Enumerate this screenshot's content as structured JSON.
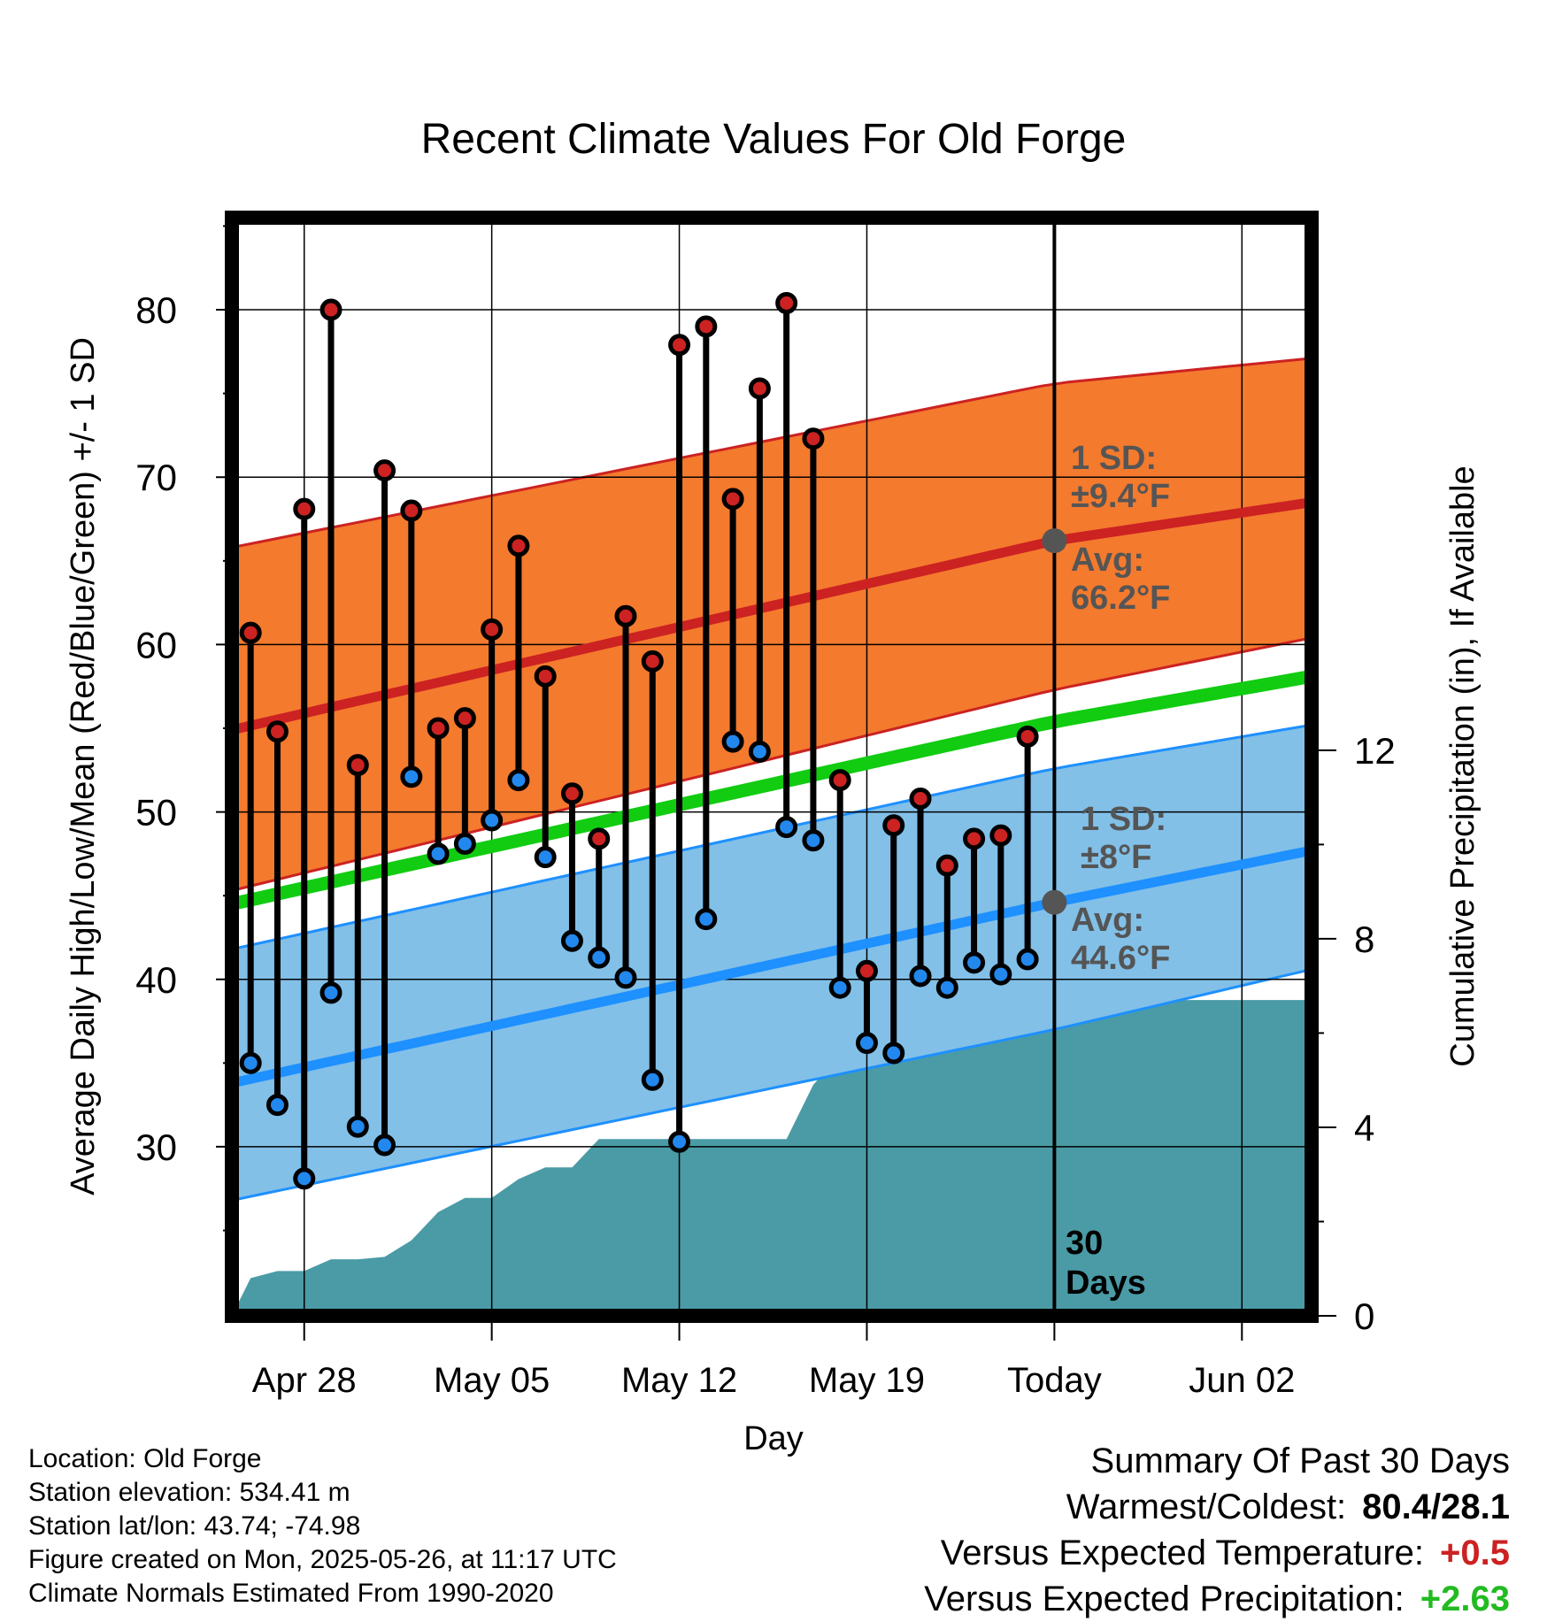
{
  "title": "Recent Climate Values For Old Forge",
  "y_left_label": "Average Daily High/Low/Mean (Red/Blue/Green) +/- 1 SD",
  "y_right_label": "Cumulative Precipitation (in), If Available",
  "x_label": "Day",
  "annotations": {
    "high_sd_line1": "1 SD:",
    "high_sd_line2": "±9.4°F",
    "high_avg_line1": "Avg:",
    "high_avg_line2": "66.2°F",
    "low_sd_line1": "1 SD:",
    "low_sd_line2": "±8°F",
    "low_avg_line1": "Avg:",
    "low_avg_line2": "44.6°F",
    "days_line1": "30",
    "days_line2": "Days"
  },
  "station": {
    "location": "Location: Old Forge",
    "elevation": "Station elevation: 534.41 m",
    "latlon": "Station lat/lon: 43.74; -74.98",
    "created": "Figure created on Mon, 2025-05-26, at 11:17 UTC",
    "normals": "Climate Normals Estimated From 1990-2020"
  },
  "summary": {
    "heading": "Summary Of Past 30 Days",
    "warm_cold_label": "Warmest/Coldest:",
    "warm_cold_value": "80.4/28.1",
    "temp_label": "Versus Expected Temperature:",
    "temp_value": "+0.5",
    "precip_label": "Versus Expected Precipitation:",
    "precip_value": "+2.63"
  },
  "colors": {
    "high_marker": "#cc2222",
    "low_marker": "#2288ee",
    "high_band": "#f47a2e",
    "high_avg_line": "#cc2222",
    "low_band": "#82c0e8",
    "low_avg_line": "#1e90ff",
    "mean_line": "#11cc11",
    "precip_fill": "#4a9ba6",
    "temp_value": "#cc2222",
    "precip_value": "#22bb22"
  },
  "chart_data": {
    "type": "line",
    "x_ticks": [
      {
        "day": 2,
        "label": "Apr 28"
      },
      {
        "day": 9,
        "label": "May 05"
      },
      {
        "day": 16,
        "label": "May 12"
      },
      {
        "day": 23,
        "label": "May 19"
      },
      {
        "day": 30,
        "label": "Today"
      },
      {
        "day": 37,
        "label": "Jun 02"
      }
    ],
    "xlim": [
      -0.7,
      39.6
    ],
    "ylim_temp": [
      19.9,
      85.5
    ],
    "ylim_precip": [
      0,
      23.3
    ],
    "y_ticks_temp": [
      30,
      40,
      50,
      60,
      70,
      80
    ],
    "y_ticks_precip": [
      0,
      4,
      8,
      12
    ],
    "grid": true,
    "today_day": 30,
    "daily": [
      {
        "day": 0,
        "high": 60.7,
        "low": 35.0
      },
      {
        "day": 1,
        "high": 54.8,
        "low": 32.5
      },
      {
        "day": 2,
        "high": 68.1,
        "low": 28.1
      },
      {
        "day": 3,
        "high": 80.0,
        "low": 39.2
      },
      {
        "day": 4,
        "high": 52.8,
        "low": 31.2
      },
      {
        "day": 5,
        "high": 70.4,
        "low": 30.1
      },
      {
        "day": 6,
        "high": 68.0,
        "low": 52.1
      },
      {
        "day": 7,
        "high": 55.0,
        "low": 47.5
      },
      {
        "day": 8,
        "high": 55.6,
        "low": 48.1
      },
      {
        "day": 9,
        "high": 60.9,
        "low": 49.5
      },
      {
        "day": 10,
        "high": 65.9,
        "low": 51.9
      },
      {
        "day": 11,
        "high": 58.1,
        "low": 47.3
      },
      {
        "day": 12,
        "high": 51.1,
        "low": 42.3
      },
      {
        "day": 13,
        "high": 48.4,
        "low": 41.3
      },
      {
        "day": 14,
        "high": 61.7,
        "low": 40.1
      },
      {
        "day": 15,
        "high": 59.0,
        "low": 34.0
      },
      {
        "day": 16,
        "high": 77.9,
        "low": 30.3
      },
      {
        "day": 17,
        "high": 79.0,
        "low": 43.6
      },
      {
        "day": 18,
        "high": 68.7,
        "low": 54.2
      },
      {
        "day": 19,
        "high": 75.3,
        "low": 53.6
      },
      {
        "day": 20,
        "high": 80.4,
        "low": 49.1
      },
      {
        "day": 21,
        "high": 72.3,
        "low": 48.3
      },
      {
        "day": 22,
        "high": 51.9,
        "low": 39.5
      },
      {
        "day": 23,
        "high": 40.5,
        "low": 36.2
      },
      {
        "day": 24,
        "high": 49.2,
        "low": 35.6
      },
      {
        "day": 25,
        "high": 50.8,
        "low": 40.2
      },
      {
        "day": 26,
        "high": 46.8,
        "low": 39.5
      },
      {
        "day": 27,
        "high": 48.4,
        "low": 41.0
      },
      {
        "day": 28,
        "high": 48.6,
        "low": 40.3
      },
      {
        "day": 29,
        "high": 54.5,
        "low": 41.2
      }
    ],
    "normals": {
      "day": [
        -0.7,
        30,
        39.6
      ],
      "high_avg": [
        54.9,
        66.2,
        68.5
      ],
      "high_upper": [
        65.8,
        75.6,
        77.1
      ],
      "high_lower": [
        45.3,
        57.3,
        60.4
      ],
      "low_avg": [
        33.8,
        44.6,
        47.7
      ],
      "low_upper": [
        41.8,
        52.6,
        55.2
      ],
      "low_lower": [
        26.8,
        37.0,
        40.6
      ],
      "mean": [
        44.5,
        55.4,
        58.1
      ]
    },
    "precipitation": {
      "name": "Cumulative Precipitation (in)",
      "day": [
        -0.7,
        0,
        1,
        2,
        3,
        4,
        5,
        6,
        7,
        8,
        9,
        10,
        11,
        12,
        13,
        14,
        15,
        16,
        17,
        18,
        19,
        20,
        21,
        22,
        23,
        24,
        25,
        26,
        27,
        28,
        29,
        30,
        39.6
      ],
      "values": [
        0.0,
        0.8,
        0.95,
        0.95,
        1.2,
        1.2,
        1.25,
        1.6,
        2.2,
        2.5,
        2.5,
        2.9,
        3.15,
        3.15,
        3.75,
        3.75,
        3.75,
        3.75,
        3.75,
        3.75,
        3.75,
        3.75,
        4.9,
        5.55,
        5.55,
        5.7,
        5.7,
        6.0,
        6.5,
        6.7,
        6.7,
        6.7,
        6.7
      ]
    }
  }
}
